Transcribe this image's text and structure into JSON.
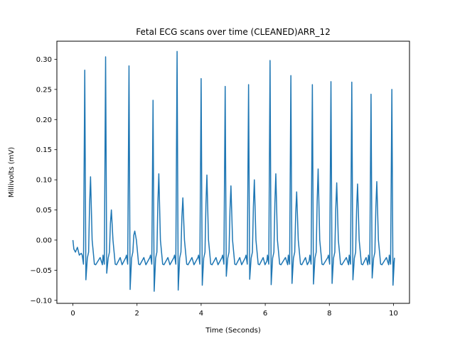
{
  "chart_data": {
    "type": "line",
    "title": "Fetal ECG scans over time (CLEANED)ARR_12",
    "xlabel": "Time (Seconds)",
    "ylabel": "Millivolts (mV)",
    "xlim": [
      -0.5,
      10.5
    ],
    "ylim": [
      -0.105,
      0.33
    ],
    "xticks": [
      0,
      2,
      4,
      6,
      8,
      10
    ],
    "xtick_labels": [
      "0",
      "2",
      "4",
      "6",
      "8",
      "10"
    ],
    "yticks": [
      -0.1,
      -0.05,
      0.0,
      0.05,
      0.1,
      0.15,
      0.2,
      0.25,
      0.3
    ],
    "ytick_labels": [
      "−0.10",
      "−0.05",
      "0.00",
      "0.05",
      "0.10",
      "0.15",
      "0.20",
      "0.25",
      "0.30"
    ],
    "grid": false,
    "legend": "none",
    "series_color": "#1f77b4",
    "beats": [
      {
        "r": 0.37,
        "peak": 0.282,
        "trough": -0.066,
        "t": 0.105
      },
      {
        "r": 1.02,
        "peak": 0.304,
        "trough": -0.055,
        "t": 0.05
      },
      {
        "r": 1.75,
        "peak": 0.289,
        "trough": -0.082,
        "t": 0.015
      },
      {
        "r": 2.5,
        "peak": 0.232,
        "trough": -0.085,
        "t": 0.11
      },
      {
        "r": 3.25,
        "peak": 0.313,
        "trough": -0.083,
        "t": 0.07
      },
      {
        "r": 4.0,
        "peak": 0.268,
        "trough": -0.075,
        "t": 0.108
      },
      {
        "r": 4.75,
        "peak": 0.255,
        "trough": -0.06,
        "t": 0.09
      },
      {
        "r": 5.48,
        "peak": 0.258,
        "trough": -0.065,
        "t": 0.1
      },
      {
        "r": 6.15,
        "peak": 0.298,
        "trough": -0.074,
        "t": 0.11
      },
      {
        "r": 6.8,
        "peak": 0.273,
        "trough": -0.072,
        "t": 0.08
      },
      {
        "r": 7.47,
        "peak": 0.258,
        "trough": -0.073,
        "t": 0.118
      },
      {
        "r": 8.05,
        "peak": 0.263,
        "trough": -0.072,
        "t": 0.095
      },
      {
        "r": 8.7,
        "peak": 0.262,
        "trough": -0.066,
        "t": 0.093
      },
      {
        "r": 9.3,
        "peak": 0.242,
        "trough": -0.063,
        "t": 0.097
      },
      {
        "r": 9.95,
        "peak": 0.25,
        "trough": -0.075,
        "t": 0.0
      }
    ],
    "baseline": -0.03,
    "start": {
      "x": 0.0,
      "y": 0.0
    },
    "end": {
      "x": 10.0,
      "y": -0.05
    }
  }
}
